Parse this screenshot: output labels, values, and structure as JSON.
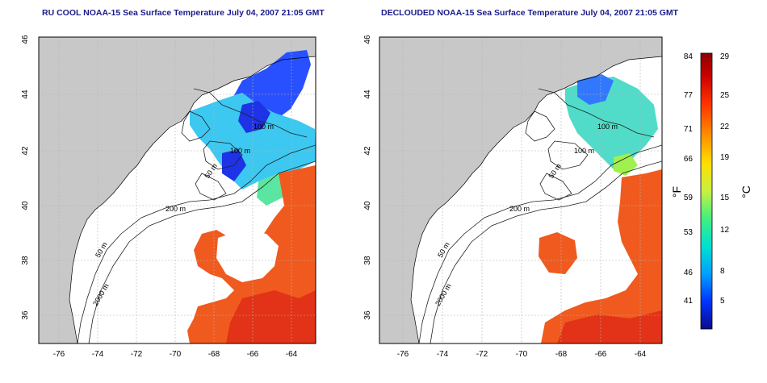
{
  "titles": {
    "left": "RU COOL NOAA-15 Sea Surface Temperature July 04, 2007 21:05 GMT",
    "right": "DECLOUDED NOAA-15 Sea Surface Temperature July 04, 2007 21:05 GMT"
  },
  "axes": {
    "longitude_ticks": [
      "-76",
      "-74",
      "-72",
      "-70",
      "-68",
      "-66",
      "-64"
    ],
    "latitude_ticks": [
      "36",
      "38",
      "40",
      "42",
      "44",
      "46"
    ]
  },
  "contour_labels": [
    "100 m",
    "100 m",
    "50 m",
    "200 m",
    "50 m",
    "2000 m"
  ],
  "colorbar": {
    "fahrenheit_label": "°F",
    "celsius_label": "°C",
    "fahrenheit_ticks": [
      "84",
      "77",
      "71",
      "66",
      "59",
      "53",
      "46",
      "41"
    ],
    "celsius_ticks": [
      "29",
      "25",
      "22",
      "19",
      "15",
      "12",
      "8",
      "5"
    ],
    "colors": [
      "#0a0a8c",
      "#0033ff",
      "#00a0ff",
      "#00e0d0",
      "#40f080",
      "#c8f040",
      "#ffe000",
      "#ff9000",
      "#ff3000",
      "#c80000",
      "#8c0000"
    ]
  },
  "map_colors": {
    "land": "#c8c8c8",
    "cloud": "#ffffff",
    "cold": "#1e3cff",
    "cool": "#32c8f0",
    "mild": "#5ae6a0",
    "warm": "#ff5a1e",
    "hot": "#e63214"
  }
}
